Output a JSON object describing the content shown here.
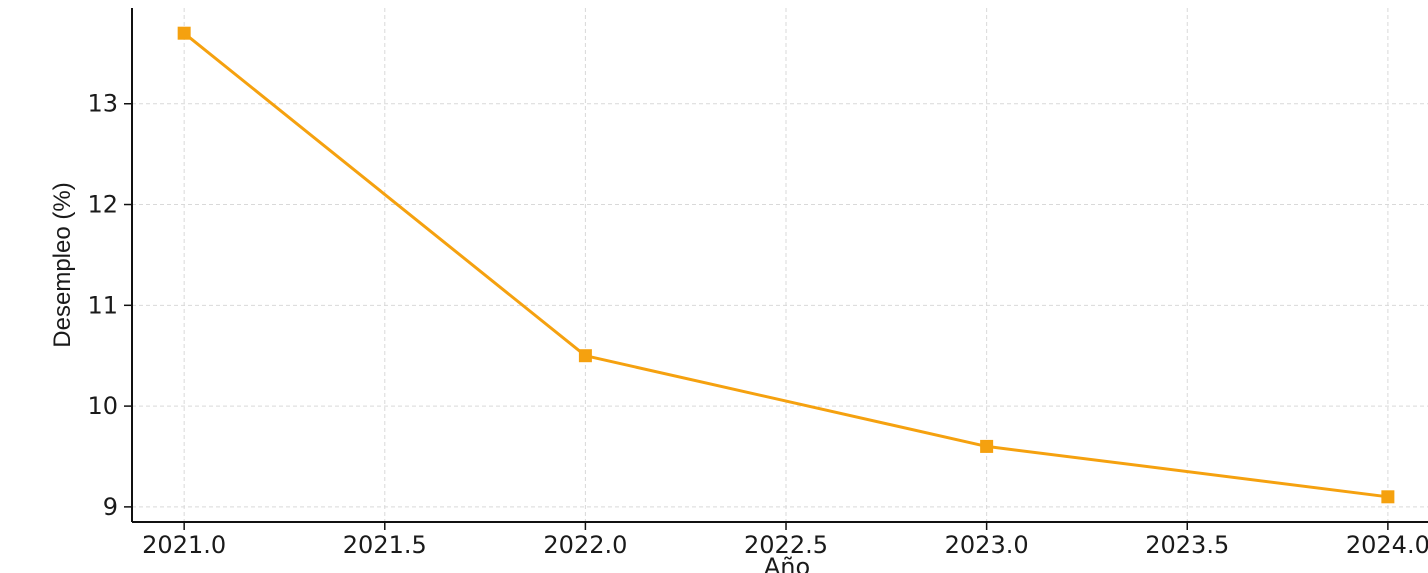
{
  "chart_data": {
    "type": "line",
    "title": "",
    "xlabel": "Año",
    "ylabel": "Desempleo (%)",
    "xlim": [
      2020.87,
      2024.1
    ],
    "ylim": [
      8.85,
      13.95
    ],
    "x_ticks": [
      2021.0,
      2021.5,
      2022.0,
      2022.5,
      2023.0,
      2023.5,
      2024.0
    ],
    "x_tick_labels": [
      "2021.0",
      "2021.5",
      "2022.0",
      "2022.5",
      "2023.0",
      "2023.5",
      "2024.0"
    ],
    "y_ticks": [
      9,
      10,
      11,
      12,
      13
    ],
    "y_tick_labels": [
      "9",
      "10",
      "11",
      "12",
      "13"
    ],
    "grid": true,
    "series": [
      {
        "x": [
          2021.0,
          2022.0,
          2023.0,
          2024.0
        ],
        "values": [
          13.7,
          10.5,
          9.6,
          9.1
        ],
        "color": "#F5A10F",
        "marker": "square"
      }
    ]
  }
}
